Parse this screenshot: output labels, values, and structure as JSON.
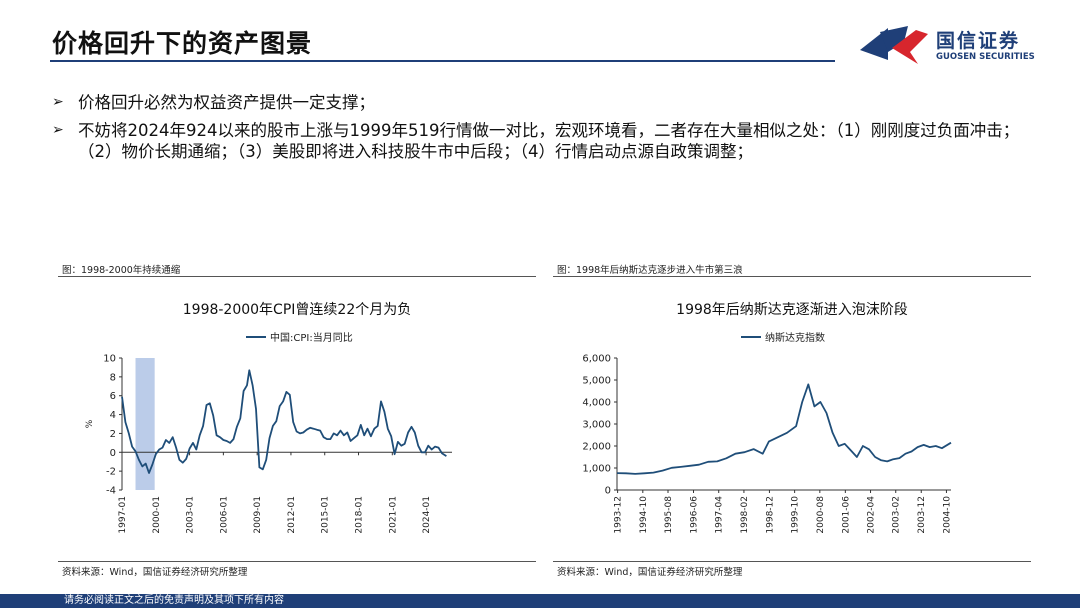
{
  "header": {
    "title": "价格回升下的资产图景",
    "logo_cn": "国信证券",
    "logo_en": "GUOSEN SECURITIES",
    "colors": {
      "brand_blue": "#1f3f78",
      "brand_red": "#d7262d"
    }
  },
  "bullets": [
    {
      "mark": "➢",
      "text": "价格回升必然为权益资产提供一定支撑；"
    },
    {
      "mark": "➢",
      "text": "不妨将2024年924以来的股市上涨与1999年519行情做一对比，宏观环境看，二者存在大量相似之处：（1）刚刚度过负面冲击；（2）物价长期通缩；（3）美股即将进入科技股牛市中后段；（4）行情启动点源自政策调整；"
    }
  ],
  "panels": [
    {
      "caption": "图：1998-2000年持续通缩",
      "source": "资料来源：Wind，国信证券经济研究所整理"
    },
    {
      "caption": "图：1998年后纳斯达克逐步进入牛市第三浪",
      "source": "资料来源：Wind，国信证券经济研究所整理"
    }
  ],
  "chart_data": [
    {
      "type": "line",
      "title": "1998-2000年CPI曾连续22个月为负",
      "ylabel": "%",
      "ylim": [
        -4,
        10
      ],
      "yticks": [
        -4,
        -2,
        0,
        2,
        4,
        6,
        8,
        10
      ],
      "xlim": [
        1997.0,
        2026.3
      ],
      "xtick_labels": [
        "1997-01",
        "2000-01",
        "2003-01",
        "2006-01",
        "2009-01",
        "2012-01",
        "2015-01",
        "2018-01",
        "2021-01",
        "2024-01"
      ],
      "xtick_values": [
        1997,
        2000,
        2003,
        2006,
        2009,
        2012,
        2015,
        2018,
        2021,
        2024
      ],
      "highlight_range": [
        1998.2,
        1999.9
      ],
      "series": [
        {
          "name": "中国:CPI:当月同比",
          "color": "#1f4e79",
          "x": [
            1997.0,
            1997.3,
            1997.6,
            1997.9,
            1998.2,
            1998.5,
            1998.8,
            1999.1,
            1999.4,
            1999.7,
            2000.0,
            2000.3,
            2000.6,
            2000.9,
            2001.2,
            2001.5,
            2001.8,
            2002.1,
            2002.4,
            2002.7,
            2003.0,
            2003.3,
            2003.6,
            2003.9,
            2004.2,
            2004.5,
            2004.8,
            2005.1,
            2005.4,
            2005.7,
            2006.0,
            2006.3,
            2006.6,
            2006.9,
            2007.2,
            2007.5,
            2007.8,
            2008.1,
            2008.3,
            2008.6,
            2008.9,
            2009.2,
            2009.5,
            2009.8,
            2010.1,
            2010.4,
            2010.7,
            2011.0,
            2011.3,
            2011.6,
            2011.9,
            2012.2,
            2012.5,
            2012.8,
            2013.1,
            2013.4,
            2013.7,
            2014.0,
            2014.3,
            2014.6,
            2014.9,
            2015.2,
            2015.5,
            2015.8,
            2016.1,
            2016.4,
            2016.7,
            2017.0,
            2017.3,
            2017.6,
            2017.9,
            2018.2,
            2018.5,
            2018.8,
            2019.1,
            2019.4,
            2019.7,
            2020.0,
            2020.3,
            2020.6,
            2020.9,
            2021.2,
            2021.5,
            2021.8,
            2022.1,
            2022.4,
            2022.7,
            2023.0,
            2023.3,
            2023.6,
            2023.9,
            2024.2,
            2024.5,
            2024.8,
            2025.1,
            2025.4,
            2025.8
          ],
          "y": [
            5.9,
            3.2,
            2.0,
            0.6,
            0.1,
            -0.8,
            -1.5,
            -1.2,
            -2.2,
            -1.3,
            -0.2,
            0.3,
            0.5,
            1.3,
            1.0,
            1.6,
            0.5,
            -0.8,
            -1.1,
            -0.7,
            0.4,
            1.0,
            0.3,
            1.8,
            2.8,
            5.0,
            5.2,
            3.9,
            1.8,
            1.6,
            1.3,
            1.2,
            1.0,
            1.4,
            2.7,
            3.6,
            6.5,
            7.1,
            8.7,
            7.1,
            4.6,
            -1.6,
            -1.8,
            -0.8,
            1.5,
            2.8,
            3.3,
            4.9,
            5.4,
            6.4,
            6.1,
            3.2,
            2.2,
            2.0,
            2.1,
            2.4,
            2.6,
            2.5,
            2.4,
            2.3,
            1.6,
            1.4,
            1.4,
            2.0,
            1.8,
            2.3,
            1.8,
            2.1,
            1.2,
            1.5,
            1.8,
            2.9,
            1.8,
            2.5,
            1.7,
            2.5,
            2.8,
            5.4,
            4.3,
            2.5,
            1.7,
            -0.2,
            1.1,
            0.7,
            0.9,
            2.1,
            2.7,
            2.1,
            0.7,
            0.0,
            0.0,
            0.7,
            0.3,
            0.6,
            0.5,
            -0.1,
            -0.4
          ]
        }
      ]
    },
    {
      "type": "line",
      "title": "1998年后纳斯达克逐渐进入泡沫阶段",
      "ylim": [
        0,
        6000
      ],
      "yticks": [
        0,
        1000,
        2000,
        3000,
        4000,
        5000,
        6000
      ],
      "ytick_labels": [
        "0",
        "1,000",
        "2,000",
        "3,000",
        "4,000",
        "5,000",
        "6,000"
      ],
      "xlim": [
        1993.9,
        2004.9
      ],
      "xtick_labels": [
        "1993-12",
        "1994-10",
        "1995-08",
        "1996-06",
        "1997-04",
        "1998-02",
        "1998-12",
        "1999-10",
        "2000-08",
        "2001-06",
        "2002-04",
        "2003-02",
        "2003-12",
        "2004-10"
      ],
      "xtick_values": [
        1993.92,
        1994.75,
        1995.58,
        1996.42,
        1997.25,
        1998.08,
        1998.92,
        1999.75,
        2000.58,
        2001.42,
        2002.25,
        2003.08,
        2003.92,
        2004.75
      ],
      "series": [
        {
          "name": "纳斯达克指数",
          "color": "#1f4e79",
          "x": [
            1993.9,
            1994.2,
            1994.5,
            1994.8,
            1995.1,
            1995.4,
            1995.7,
            1996.0,
            1996.3,
            1996.6,
            1996.9,
            1997.2,
            1997.5,
            1997.8,
            1998.1,
            1998.4,
            1998.7,
            1998.9,
            1999.2,
            1999.5,
            1999.8,
            2000.0,
            2000.2,
            2000.4,
            2000.6,
            2000.8,
            2001.0,
            2001.2,
            2001.4,
            2001.6,
            2001.8,
            2002.0,
            2002.2,
            2002.4,
            2002.6,
            2002.8,
            2003.0,
            2003.2,
            2003.4,
            2003.6,
            2003.8,
            2004.0,
            2004.2,
            2004.4,
            2004.6,
            2004.9
          ],
          "y": [
            770,
            760,
            730,
            760,
            790,
            880,
            1010,
            1050,
            1100,
            1150,
            1280,
            1300,
            1440,
            1650,
            1720,
            1860,
            1650,
            2200,
            2400,
            2600,
            2900,
            4000,
            4800,
            3800,
            4000,
            3500,
            2600,
            2000,
            2100,
            1800,
            1500,
            2000,
            1850,
            1500,
            1350,
            1300,
            1400,
            1450,
            1650,
            1750,
            1950,
            2050,
            1950,
            2000,
            1900,
            2150
          ]
        }
      ]
    }
  ],
  "footer": {
    "text": "请务必阅读正文之后的免责声明及其项下所有内容"
  }
}
